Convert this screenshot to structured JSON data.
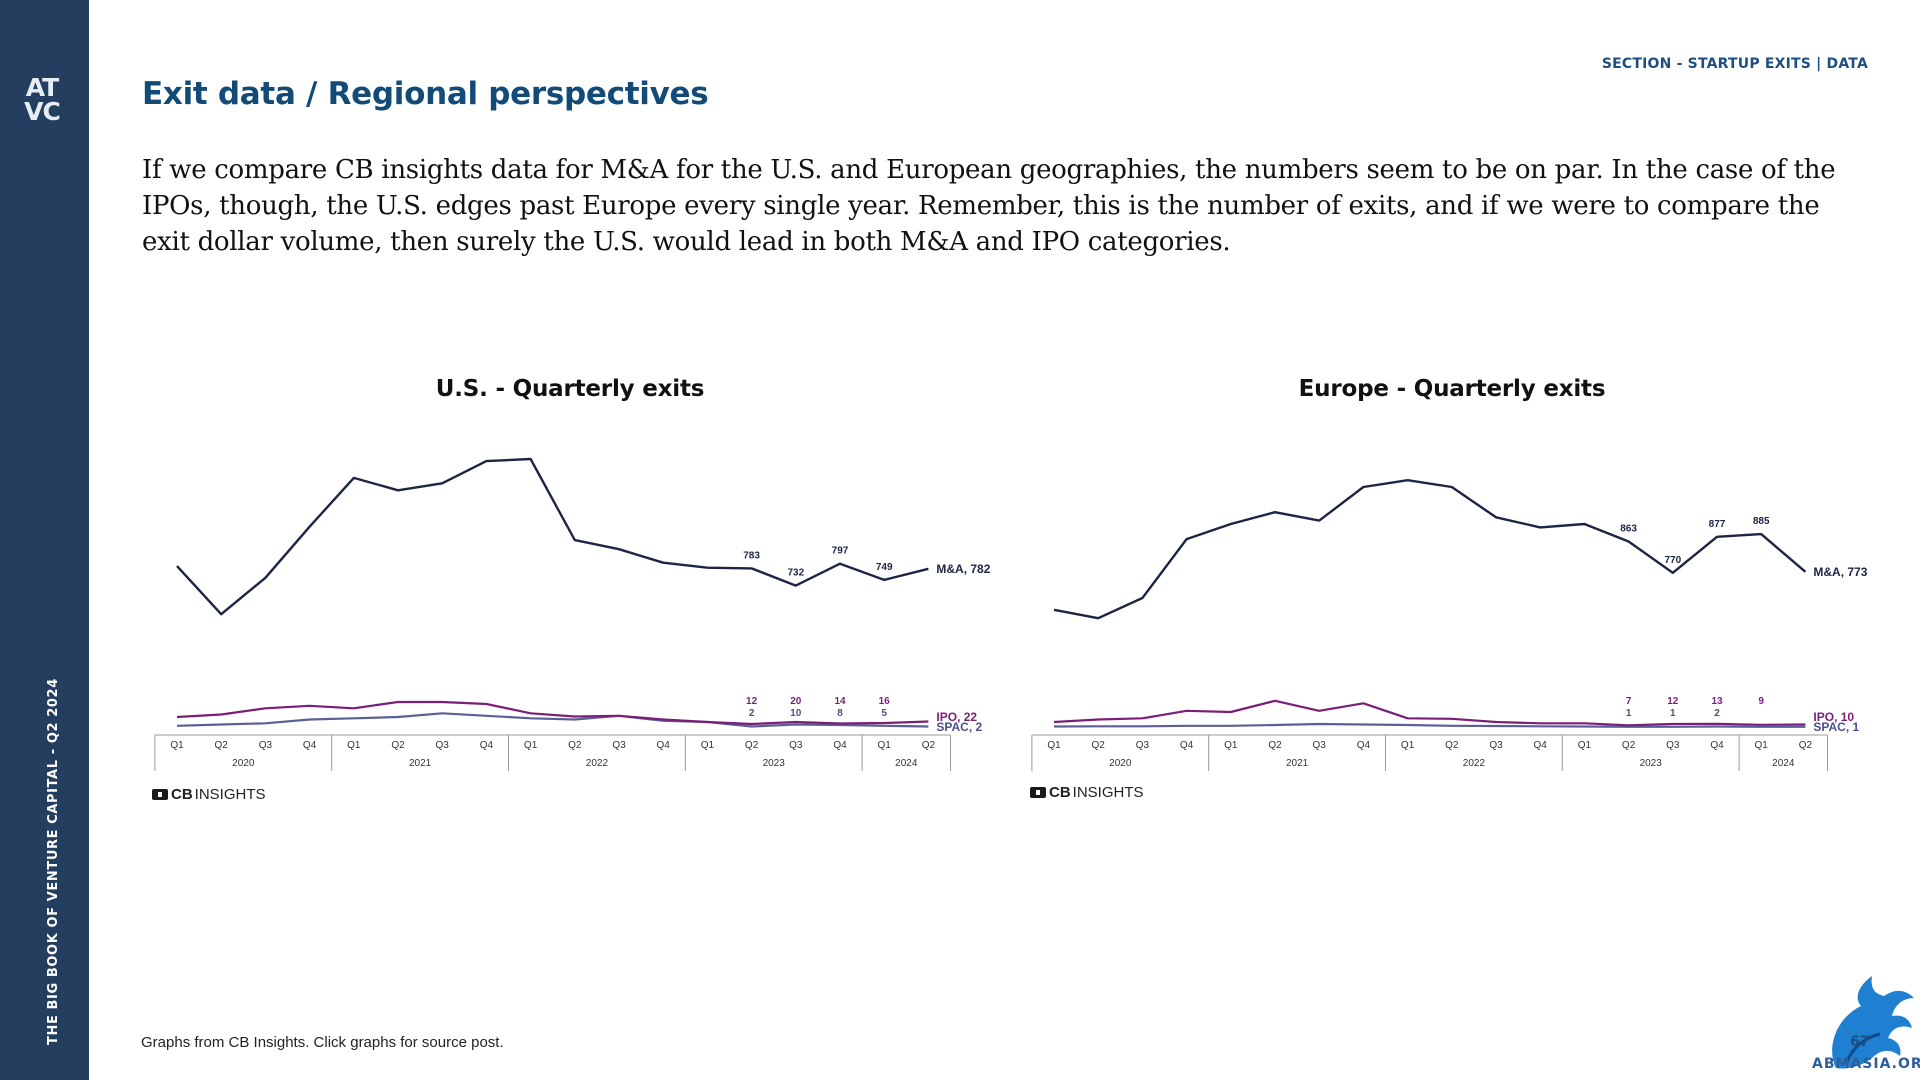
{
  "sidebar": {
    "logo_top": "AT",
    "logo_bottom": "VC",
    "vertical_title": "THE BIG BOOK OF VENTURE CAPITAL - Q2 2024"
  },
  "header": {
    "section_label": "SECTION - STARTUP EXITS | DATA",
    "title": "Exit data / Regional perspectives"
  },
  "body_text": "If we compare CB insights data for M&A for the U.S. and European geographies, the numbers seem to be on par. In the case of the IPOs, though, the U.S. edges past Europe every single year. Remember, this is the number of exits, and if we were to compare the exit dollar volume, then surely the U.S. would lead in both M&A and IPO categories.",
  "cb_logo": {
    "bold": "CB",
    "rest": "INSIGHTS"
  },
  "footnote": "Graphs from CB Insights. Click graphs for source post.",
  "page_number": "67",
  "watermark": "ABMASIA.ORG",
  "colors": {
    "sidebar": "#243e5f",
    "title": "#124a78",
    "ma_line": "#1c2544",
    "ipo_line": "#7a1e78",
    "spac_line": "#5a5f97"
  },
  "chart_data": [
    {
      "type": "line",
      "title": "U.S. - Quarterly exits",
      "x": [
        "Q1",
        "Q2",
        "Q3",
        "Q4",
        "Q1",
        "Q2",
        "Q3",
        "Q4",
        "Q1",
        "Q2",
        "Q3",
        "Q4",
        "Q1",
        "Q2",
        "Q3",
        "Q4",
        "Q1",
        "Q2"
      ],
      "year_groups": [
        {
          "label": "2020",
          "count": 4
        },
        {
          "label": "2021",
          "count": 4
        },
        {
          "label": "2022",
          "count": 4
        },
        {
          "label": "2023",
          "count": 4
        },
        {
          "label": "2024",
          "count": 2
        }
      ],
      "ylim": [
        0,
        1400
      ],
      "series": [
        {
          "name": "M&A",
          "end_label": "M&A, 782",
          "values": [
            790,
            647,
            755,
            907,
            1052,
            1015,
            1036,
            1102,
            1108,
            867,
            840,
            800,
            785,
            783,
            732,
            797,
            749,
            782
          ],
          "shown_labels": [
            null,
            null,
            null,
            null,
            null,
            null,
            null,
            null,
            null,
            null,
            null,
            null,
            null,
            "783",
            "732",
            "797",
            "749",
            null
          ]
        },
        {
          "name": "IPO",
          "end_label": "IPO, 22",
          "values": [
            40,
            50,
            75,
            85,
            75,
            100,
            100,
            92,
            55,
            42,
            45,
            30,
            20,
            12,
            20,
            14,
            16,
            22
          ],
          "shown_labels": [
            null,
            null,
            null,
            null,
            null,
            null,
            null,
            null,
            null,
            null,
            null,
            null,
            null,
            "12",
            "20",
            "14",
            "16",
            null
          ]
        },
        {
          "name": "SPAC",
          "end_label": "SPAC, 2",
          "values": [
            5,
            10,
            15,
            30,
            35,
            40,
            55,
            45,
            35,
            30,
            45,
            25,
            20,
            2,
            10,
            8,
            5,
            2
          ],
          "shown_labels": [
            null,
            null,
            null,
            null,
            null,
            null,
            null,
            null,
            null,
            null,
            null,
            null,
            null,
            "2",
            "10",
            "8",
            "5",
            null
          ]
        }
      ]
    },
    {
      "type": "line",
      "title": "Europe - Quarterly exits",
      "x": [
        "Q1",
        "Q2",
        "Q3",
        "Q4",
        "Q1",
        "Q2",
        "Q3",
        "Q4",
        "Q1",
        "Q2",
        "Q3",
        "Q4",
        "Q1",
        "Q2",
        "Q3",
        "Q4",
        "Q1",
        "Q2"
      ],
      "year_groups": [
        {
          "label": "2020",
          "count": 4
        },
        {
          "label": "2021",
          "count": 4
        },
        {
          "label": "2022",
          "count": 4
        },
        {
          "label": "2023",
          "count": 4
        },
        {
          "label": "2024",
          "count": 2
        }
      ],
      "ylim": [
        0,
        1400
      ],
      "series": [
        {
          "name": "M&A",
          "end_label": "M&A, 773",
          "values": [
            660,
            635,
            695,
            870,
            915,
            950,
            925,
            1025,
            1045,
            1025,
            935,
            905,
            915,
            863,
            770,
            877,
            885,
            773
          ],
          "shown_labels": [
            null,
            null,
            null,
            null,
            null,
            null,
            null,
            null,
            null,
            null,
            null,
            null,
            null,
            "863",
            "770",
            "877",
            "885",
            null
          ]
        },
        {
          "name": "IPO",
          "end_label": "IPO, 10",
          "values": [
            20,
            30,
            35,
            65,
            60,
            105,
            65,
            95,
            35,
            33,
            20,
            15,
            15,
            7,
            12,
            13,
            9,
            10
          ],
          "shown_labels": [
            null,
            null,
            null,
            null,
            null,
            null,
            null,
            null,
            null,
            null,
            null,
            null,
            null,
            "7",
            "12",
            "13",
            "9",
            null
          ]
        },
        {
          "name": "SPAC",
          "end_label": "SPAC, 1",
          "values": [
            2,
            3,
            3,
            5,
            5,
            8,
            12,
            10,
            8,
            5,
            4,
            3,
            2,
            1,
            1,
            2,
            1,
            1
          ],
          "shown_labels": [
            null,
            null,
            null,
            null,
            null,
            null,
            null,
            null,
            null,
            null,
            null,
            null,
            null,
            "1",
            "1",
            "2",
            null,
            null
          ]
        }
      ]
    }
  ]
}
